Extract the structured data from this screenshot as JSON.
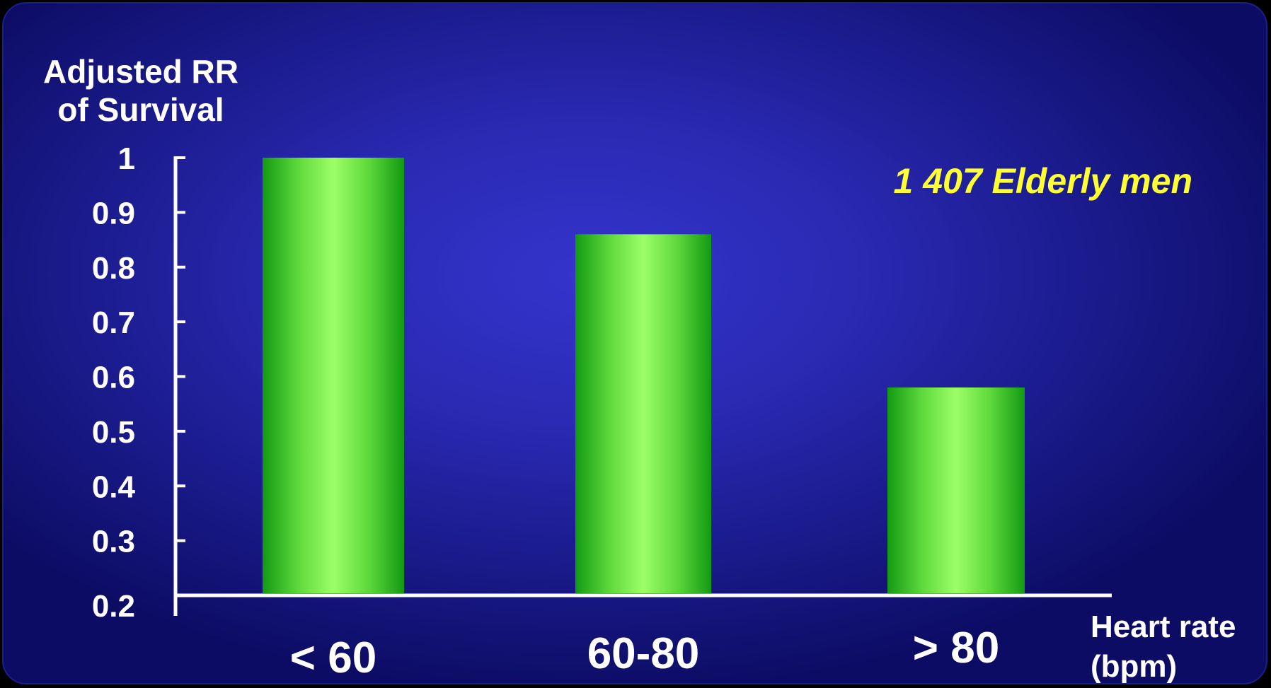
{
  "colors": {
    "background": "#2a2ab4",
    "bar_light": "#9cff66",
    "bar_dark": "#139a13",
    "axis": "#ffffff",
    "annotation": "#ffff33"
  },
  "chart_data": {
    "type": "bar",
    "ylabel_lines": [
      "Adjusted RR",
      "of Survival"
    ],
    "xlabel_lines": [
      "Heart rate",
      "(bpm)"
    ],
    "categories": [
      "< 60",
      "60-80",
      "> 80"
    ],
    "values": [
      1.0,
      0.86,
      0.58
    ],
    "ylim": [
      0.2,
      1
    ],
    "yticks": [
      "1",
      "0.9",
      "0.8",
      "0.7",
      "0.6",
      "0.5",
      "0.4",
      "0.3",
      "0.2"
    ],
    "annotation": "1 407 Elderly men",
    "grid": false
  }
}
